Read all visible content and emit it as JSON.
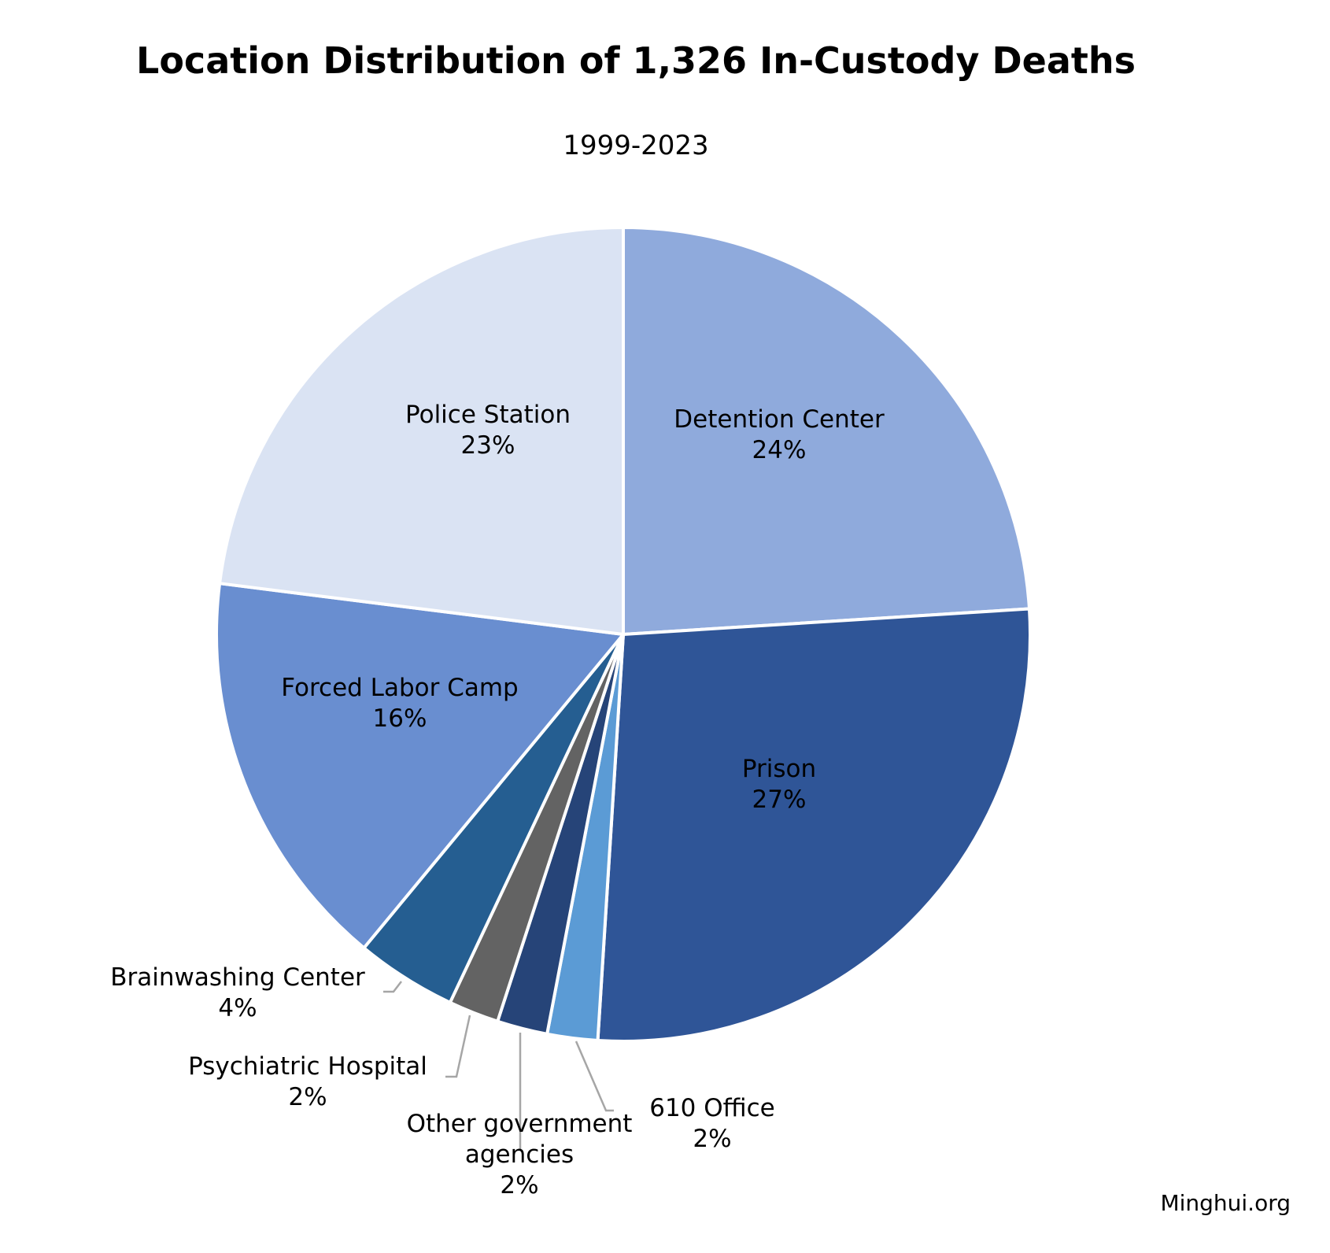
{
  "chart_data": {
    "type": "pie",
    "title": "Location Distribution of 1,326 In-Custody Deaths",
    "subtitle": "1999-2023",
    "slices": [
      {
        "name": "Detention Center",
        "pct_label": "24%",
        "value": 24,
        "color": "#8faadc"
      },
      {
        "name": "Prison",
        "pct_label": "27%",
        "value": 27,
        "color": "#2f5597"
      },
      {
        "name": "610 Office",
        "pct_label": "2%",
        "value": 2,
        "color": "#5b9bd5"
      },
      {
        "name": "Other government agencies",
        "name_lines": [
          "Other government",
          "agencies"
        ],
        "pct_label": "2%",
        "value": 2,
        "color": "#264478"
      },
      {
        "name": "Psychiatric Hospital",
        "pct_label": "2%",
        "value": 2,
        "color": "#636363"
      },
      {
        "name": "Brainwashing Center",
        "pct_label": "4%",
        "value": 4,
        "color": "#255e91"
      },
      {
        "name": "Forced Labor Camp",
        "pct_label": "16%",
        "value": 16,
        "color": "#698ed0"
      },
      {
        "name": "Police Station",
        "pct_label": "23%",
        "value": 23,
        "color": "#dae3f3"
      }
    ],
    "start_angle": "12 o'clock",
    "direction": "clockwise",
    "legend": "none"
  },
  "credit": "Minghui.org"
}
